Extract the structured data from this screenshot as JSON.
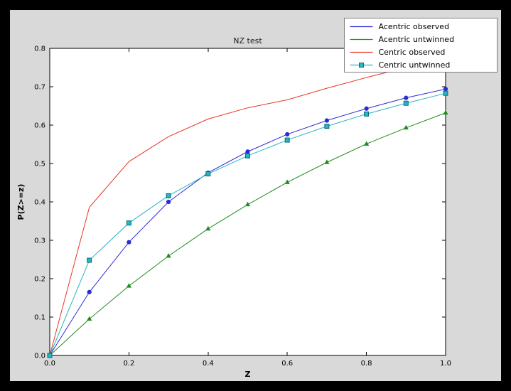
{
  "figure": {
    "outer_background": "#000000",
    "figure_background": "#d9d9d9",
    "axes_background": "#ffffff",
    "axes_edge_color": "#000000",
    "tick_color": "#000000",
    "title_color": "#1a1a1a",
    "legend_background": "#ffffff",
    "legend_border": "#7f7f7f"
  },
  "chart_data": {
    "type": "line",
    "title": "NZ test",
    "xlabel": "Z",
    "ylabel": "P(Z>=z)",
    "xlim": [
      0.0,
      1.0
    ],
    "ylim": [
      0.0,
      0.8
    ],
    "grid": false,
    "legend_position": "upper right",
    "xticks": {
      "values": [
        0.0,
        0.2,
        0.4,
        0.6,
        0.8,
        1.0
      ],
      "labels": [
        "0.0",
        "0.2",
        "0.4",
        "0.6",
        "0.8",
        "1.0"
      ]
    },
    "yticks": {
      "values": [
        0.0,
        0.1,
        0.2,
        0.3,
        0.4,
        0.5,
        0.6,
        0.7,
        0.8
      ],
      "labels": [
        "0.0",
        "0.1",
        "0.2",
        "0.3",
        "0.4",
        "0.5",
        "0.6",
        "0.7",
        "0.8"
      ]
    },
    "x": [
      0.0,
      0.1,
      0.2,
      0.3,
      0.4,
      0.5,
      0.6,
      0.7,
      0.8,
      0.9,
      1.0
    ],
    "series": [
      {
        "name": "Acentric observed",
        "color": "#2b2bd5",
        "marker": "circle",
        "legend_marker": false,
        "values": [
          0.0,
          0.165,
          0.295,
          0.4,
          0.476,
          0.531,
          0.576,
          0.612,
          0.643,
          0.671,
          0.694
        ]
      },
      {
        "name": "Acentric untwinned",
        "color": "#1e8c1e",
        "marker": "triangle",
        "legend_marker": false,
        "values": [
          0.0,
          0.095,
          0.181,
          0.259,
          0.33,
          0.393,
          0.451,
          0.503,
          0.551,
          0.593,
          0.632
        ]
      },
      {
        "name": "Centric observed",
        "color": "#ea3423",
        "marker": "none",
        "legend_marker": false,
        "values": [
          0.0,
          0.386,
          0.505,
          0.57,
          0.616,
          0.645,
          0.666,
          0.696,
          0.724,
          0.75,
          0.768
        ]
      },
      {
        "name": "Centric untwinned",
        "color": "#27b5c4",
        "marker": "square",
        "marker_edge": "#0b6b75",
        "legend_marker": true,
        "values": [
          0.0,
          0.248,
          0.345,
          0.416,
          0.473,
          0.52,
          0.561,
          0.597,
          0.629,
          0.657,
          0.683
        ]
      }
    ]
  }
}
